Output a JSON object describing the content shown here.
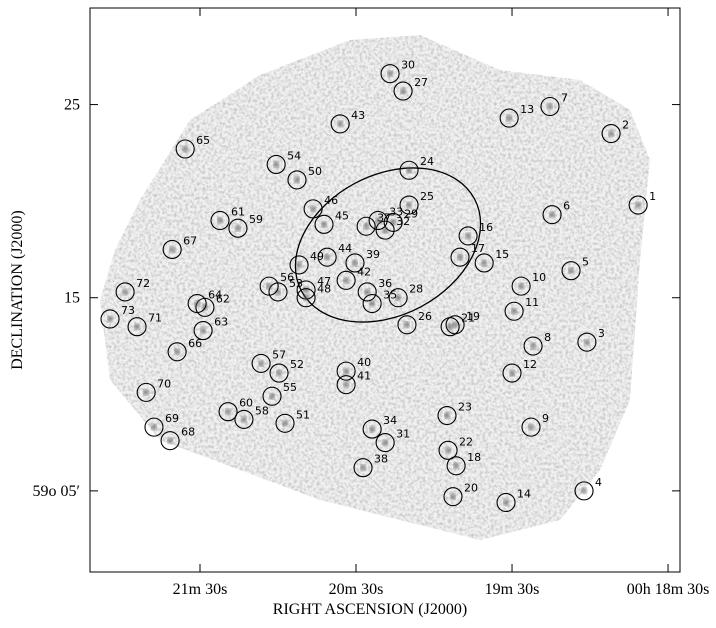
{
  "chart_data": {
    "type": "scatter",
    "xlabel": "RIGHT ASCENSION (J2000)",
    "ylabel": "DECLINATION (J2000)",
    "xlim": [
      252.3,
      25.4
    ],
    "ylim": [
      0.8,
      30
    ],
    "xticks": [
      {
        "value": 210,
        "label": "21m 30s"
      },
      {
        "value": 150,
        "label": "20m 30s"
      },
      {
        "value": 90,
        "label": "19m 30s"
      },
      {
        "value": 30,
        "label": "00h 18m 30s"
      }
    ],
    "yticks": [
      25,
      15,
      {
        "value": 5,
        "label": "59o 05′"
      }
    ],
    "color": "#000000",
    "labels": [
      "1",
      "2",
      "3",
      "4",
      "5",
      "6",
      "7",
      "8",
      "9",
      "10",
      "11",
      "12",
      "13",
      "14",
      "15",
      "16",
      "17",
      "18",
      "19",
      "20",
      "21",
      "22",
      "23",
      "24",
      "25",
      "26",
      "27",
      "28",
      "29",
      "30",
      "31",
      "32",
      "33",
      "34",
      "35",
      "36",
      "37",
      "38",
      "39",
      "40",
      "41",
      "42",
      "43",
      "44",
      "45",
      "46",
      "47",
      "48",
      "49",
      "50",
      "51",
      "52",
      "53",
      "54",
      "55",
      "56",
      "57",
      "58",
      "59",
      "60",
      "61",
      "62",
      "63",
      "64",
      "65",
      "66",
      "67",
      "68",
      "69",
      "70",
      "71",
      "72",
      "73"
    ],
    "x": [
      41.5,
      51.9,
      61.2,
      62.3,
      67.3,
      74.6,
      75.4,
      81.9,
      82.7,
      86.5,
      89.2,
      90.0,
      91.1,
      92.3,
      100.7,
      106.9,
      110.0,
      111.5,
      111.9,
      112.7,
      113.8,
      114.6,
      115.0,
      129.6,
      129.6,
      130.4,
      131.9,
      133.8,
      135.7,
      136.9,
      138.8,
      138.8,
      141.5,
      143.8,
      143.8,
      145.7,
      146.1,
      147.3,
      150.4,
      153.8,
      153.8,
      153.8,
      156.1,
      161.1,
      162.3,
      166.5,
      169.2,
      169.2,
      171.9,
      172.7,
      177.3,
      179.6,
      180.0,
      180.7,
      182.3,
      183.4,
      186.5,
      193.1,
      195.4,
      199.2,
      202.3,
      208.1,
      208.8,
      211.1,
      215.7,
      218.8,
      220.7,
      221.5,
      227.7,
      230.7,
      234.2,
      238.8,
      244.6
    ],
    "y": [
      19.8,
      23.5,
      12.7,
      5.0,
      16.4,
      19.3,
      24.9,
      12.5,
      8.3,
      15.6,
      14.3,
      11.1,
      24.3,
      4.4,
      16.8,
      18.2,
      17.1,
      6.3,
      13.6,
      4.7,
      13.5,
      7.1,
      8.9,
      21.6,
      19.8,
      13.6,
      25.7,
      15.0,
      18.9,
      26.6,
      7.5,
      18.5,
      19.0,
      8.2,
      14.7,
      15.3,
      18.7,
      6.2,
      16.8,
      11.2,
      10.5,
      15.9,
      24.0,
      17.1,
      18.8,
      19.6,
      15.4,
      15.0,
      16.7,
      21.1,
      8.5,
      11.1,
      15.3,
      21.9,
      9.9,
      15.6,
      11.6,
      8.7,
      18.6,
      9.1,
      19.0,
      14.5,
      13.3,
      14.7,
      22.7,
      12.2,
      17.5,
      7.6,
      8.3,
      10.1,
      13.5,
      15.3,
      13.9
    ]
  }
}
